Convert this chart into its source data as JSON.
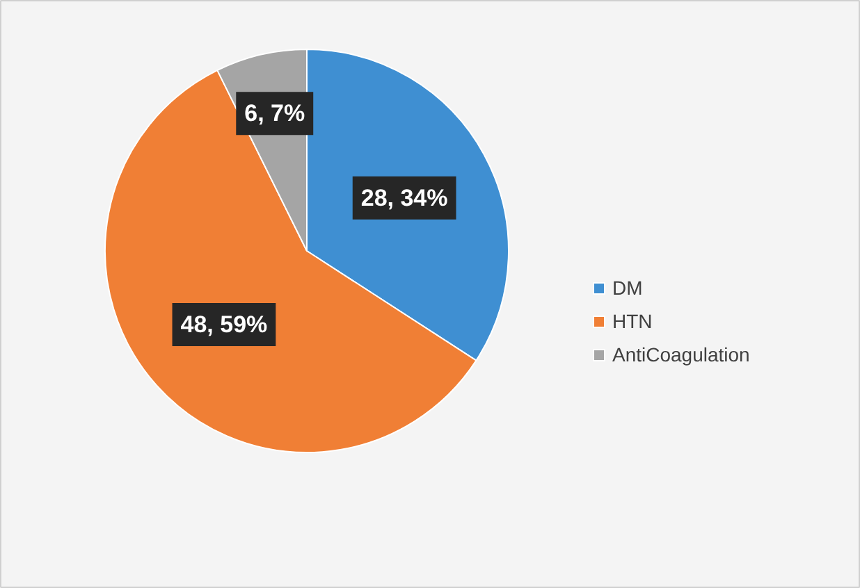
{
  "chart_data": {
    "type": "pie",
    "categories": [
      "DM",
      "HTN",
      "AntiCoagulation"
    ],
    "values": [
      28,
      48,
      6
    ],
    "colors": [
      "#3f8fd2",
      "#f07f35",
      "#a5a5a5"
    ],
    "value_labels": [
      "28, 34%",
      "48, 59%",
      "6, 7%"
    ],
    "legend": "right"
  }
}
